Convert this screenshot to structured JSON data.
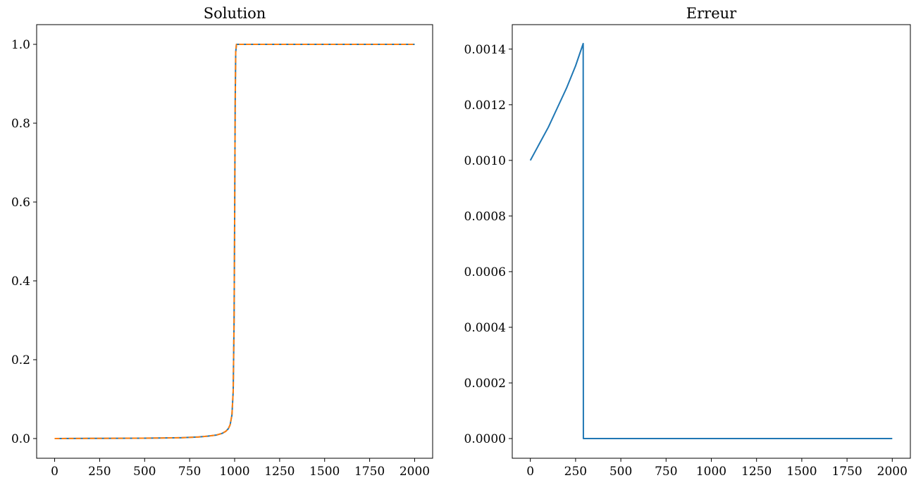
{
  "chart_data": [
    {
      "type": "line",
      "title": "Solution",
      "xlabel": "",
      "ylabel": "",
      "xlim": [
        -100,
        2100
      ],
      "ylim": [
        -0.05,
        1.05
      ],
      "xticks": [
        0,
        250,
        500,
        750,
        1000,
        1250,
        1500,
        1750,
        2000
      ],
      "xtick_labels": [
        "0",
        "250",
        "500",
        "750",
        "1000",
        "1250",
        "1500",
        "1750",
        "2000"
      ],
      "yticks": [
        0.0,
        0.2,
        0.4,
        0.6,
        0.8,
        1.0
      ],
      "ytick_labels": [
        "0.0",
        "0.2",
        "0.4",
        "0.6",
        "0.8",
        "1.0"
      ],
      "grid": false,
      "series": [
        {
          "color": "#1f77b4",
          "dash": "solid",
          "x": [
            0,
            250,
            500,
            700,
            800,
            850,
            900,
            930,
            950,
            965,
            975,
            985,
            992,
            997,
            1000,
            1003,
            1006,
            1010,
            1020,
            1500,
            2000
          ],
          "y": [
            0.0,
            0.0005,
            0.001,
            0.002,
            0.004,
            0.006,
            0.009,
            0.013,
            0.018,
            0.025,
            0.035,
            0.06,
            0.12,
            0.3,
            0.55,
            0.85,
            0.98,
            1.0,
            1.0,
            1.0,
            1.0
          ]
        },
        {
          "color": "#ff7f0e",
          "dash": "dashed",
          "x": [
            0,
            250,
            500,
            700,
            800,
            850,
            900,
            930,
            950,
            965,
            975,
            985,
            992,
            997,
            1000,
            1003,
            1006,
            1010,
            1020,
            1500,
            2000
          ],
          "y": [
            0.0,
            0.0005,
            0.001,
            0.002,
            0.004,
            0.006,
            0.009,
            0.013,
            0.018,
            0.025,
            0.035,
            0.06,
            0.12,
            0.3,
            0.55,
            0.85,
            0.98,
            1.0,
            1.0,
            1.0,
            1.0
          ]
        }
      ]
    },
    {
      "type": "line",
      "title": "Erreur",
      "xlabel": "",
      "ylabel": "",
      "xlim": [
        -100,
        2100
      ],
      "ylim": [
        -7.08e-05,
        0.001488
      ],
      "xticks": [
        0,
        250,
        500,
        750,
        1000,
        1250,
        1500,
        1750,
        2000
      ],
      "xtick_labels": [
        "0",
        "250",
        "500",
        "750",
        "1000",
        "1250",
        "1500",
        "1750",
        "2000"
      ],
      "yticks": [
        0.0,
        0.0002,
        0.0004,
        0.0006,
        0.0008,
        0.001,
        0.0012,
        0.0014
      ],
      "ytick_labels": [
        "0.0000",
        "0.0002",
        "0.0004",
        "0.0006",
        "0.0008",
        "0.0010",
        "0.0012",
        "0.0014"
      ],
      "grid": false,
      "series": [
        {
          "color": "#1f77b4",
          "dash": "solid",
          "x": [
            0,
            50,
            100,
            150,
            200,
            250,
            292,
            293,
            500,
            1000,
            1500,
            2000
          ],
          "y": [
            0.001,
            0.00106,
            0.00112,
            0.00119,
            0.00126,
            0.00134,
            0.00142,
            0.0,
            0.0,
            0.0,
            0.0,
            0.0
          ]
        }
      ]
    }
  ]
}
